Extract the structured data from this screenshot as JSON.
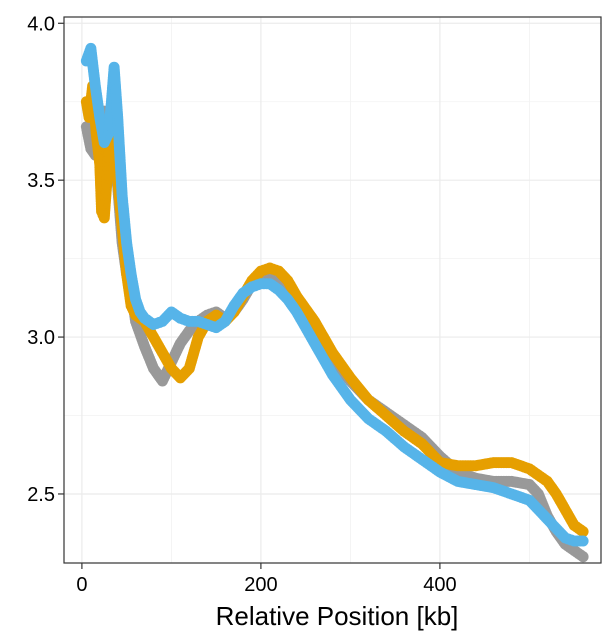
{
  "chart_data": {
    "type": "scatter",
    "xlabel": "Relative Position [kb]",
    "ylabel": "",
    "xlim": [
      -20,
      580
    ],
    "ylim": [
      2.28,
      4.02
    ],
    "x_ticks": [
      0,
      200,
      400
    ],
    "x_tick_labels": [
      "0",
      "200",
      "400"
    ],
    "y_ticks": [
      2.5,
      3.0,
      3.5,
      4.0
    ],
    "y_tick_labels": [
      "2.5",
      "3.0",
      "3.5",
      "4.0"
    ],
    "grid": true,
    "legend": "none",
    "series": [
      {
        "color": "#999999",
        "x": [
          5,
          10,
          15,
          20,
          25,
          30,
          35,
          40,
          45,
          50,
          55,
          60,
          70,
          80,
          90,
          100,
          110,
          120,
          130,
          140,
          150,
          160,
          170,
          180,
          190,
          200,
          210,
          220,
          230,
          240,
          260,
          280,
          300,
          320,
          340,
          360,
          380,
          400,
          420,
          440,
          460,
          480,
          500,
          510,
          520,
          530,
          540,
          550,
          560
        ],
        "y": [
          3.67,
          3.6,
          3.58,
          3.65,
          3.72,
          3.68,
          3.58,
          3.48,
          3.3,
          3.2,
          3.15,
          3.05,
          2.97,
          2.9,
          2.86,
          2.92,
          2.98,
          3.02,
          3.05,
          3.07,
          3.08,
          3.06,
          3.08,
          3.12,
          3.17,
          3.2,
          3.19,
          3.18,
          3.15,
          3.1,
          3.02,
          2.93,
          2.86,
          2.8,
          2.76,
          2.72,
          2.68,
          2.62,
          2.57,
          2.55,
          2.54,
          2.54,
          2.53,
          2.5,
          2.43,
          2.38,
          2.34,
          2.32,
          2.3
        ]
      },
      {
        "color": "#E69F00",
        "x": [
          5,
          8,
          12,
          16,
          20,
          22,
          25,
          28,
          32,
          36,
          40,
          45,
          50,
          55,
          60,
          70,
          80,
          90,
          100,
          110,
          120,
          130,
          140,
          150,
          160,
          170,
          180,
          190,
          200,
          210,
          220,
          230,
          240,
          260,
          280,
          300,
          320,
          340,
          360,
          380,
          400,
          420,
          440,
          460,
          480,
          500,
          520,
          530,
          540,
          550,
          560
        ],
        "y": [
          3.75,
          3.7,
          3.8,
          3.65,
          3.55,
          3.4,
          3.38,
          3.5,
          3.7,
          3.65,
          3.5,
          3.35,
          3.2,
          3.1,
          3.07,
          3.05,
          3.0,
          2.95,
          2.9,
          2.87,
          2.9,
          3.0,
          3.05,
          3.07,
          3.05,
          3.08,
          3.13,
          3.18,
          3.21,
          3.22,
          3.21,
          3.18,
          3.13,
          3.05,
          2.95,
          2.87,
          2.8,
          2.75,
          2.7,
          2.66,
          2.6,
          2.59,
          2.59,
          2.6,
          2.6,
          2.58,
          2.54,
          2.5,
          2.45,
          2.4,
          2.38
        ]
      },
      {
        "color": "#56B4E9",
        "x": [
          5,
          10,
          15,
          20,
          25,
          30,
          33,
          36,
          40,
          45,
          50,
          55,
          60,
          65,
          70,
          80,
          90,
          100,
          110,
          120,
          130,
          140,
          150,
          160,
          170,
          180,
          190,
          200,
          210,
          220,
          230,
          240,
          260,
          280,
          300,
          320,
          340,
          360,
          380,
          400,
          420,
          440,
          460,
          480,
          500,
          510,
          520,
          530,
          540,
          550,
          560
        ],
        "y": [
          3.88,
          3.92,
          3.8,
          3.7,
          3.62,
          3.65,
          3.75,
          3.86,
          3.7,
          3.45,
          3.3,
          3.2,
          3.12,
          3.08,
          3.06,
          3.04,
          3.05,
          3.08,
          3.06,
          3.05,
          3.05,
          3.04,
          3.03,
          3.05,
          3.1,
          3.14,
          3.16,
          3.17,
          3.17,
          3.15,
          3.12,
          3.08,
          2.98,
          2.88,
          2.8,
          2.74,
          2.7,
          2.65,
          2.61,
          2.57,
          2.54,
          2.53,
          2.52,
          2.5,
          2.48,
          2.45,
          2.42,
          2.39,
          2.36,
          2.35,
          2.35
        ]
      }
    ]
  }
}
